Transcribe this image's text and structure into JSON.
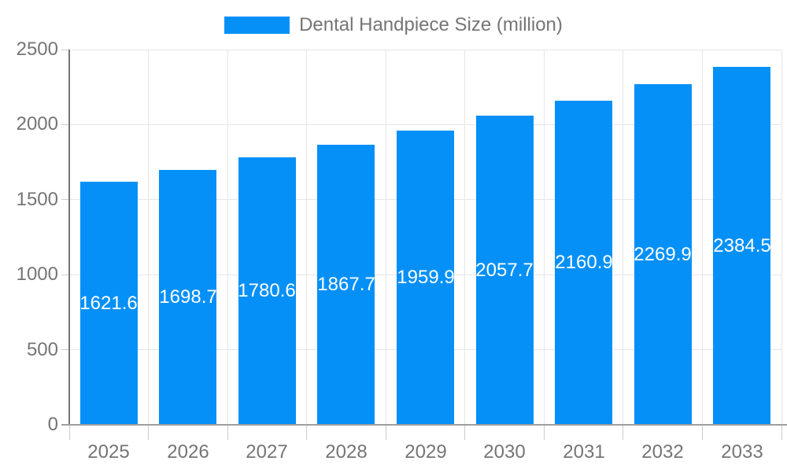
{
  "chart_data": {
    "type": "bar",
    "title": "Dental Handpiece Size (million)",
    "xlabel": "",
    "ylabel": "",
    "categories": [
      "2025",
      "2026",
      "2027",
      "2028",
      "2029",
      "2030",
      "2031",
      "2032",
      "2033"
    ],
    "series": [
      {
        "name": "Dental Handpiece Size (million)",
        "values": [
          1621.6,
          1698.7,
          1780.6,
          1867.7,
          1959.9,
          2057.7,
          2160.9,
          2269.9,
          2384.5
        ]
      }
    ],
    "value_labels": [
      "1621.6",
      "1698.7",
      "1780.6",
      "1867.7",
      "1959.9",
      "2057.7",
      "2160.9",
      "2269.9",
      "2384.5"
    ],
    "ylim": [
      0,
      2500
    ],
    "yticks": [
      0,
      500,
      1000,
      1500,
      2000,
      2500
    ],
    "ytick_labels": [
      "0",
      "500",
      "1000",
      "1500",
      "2000",
      "2500"
    ],
    "grid": true,
    "legend_position": "top",
    "colors": {
      "bar": "#0590f8",
      "grid": "#e6e6e6",
      "axis_y": "#757575",
      "axis_x": "#9e9e9e",
      "tick": "#cccccc",
      "label_text": "#757575",
      "value_text": "#ffffff",
      "background": "#ffffff"
    }
  }
}
